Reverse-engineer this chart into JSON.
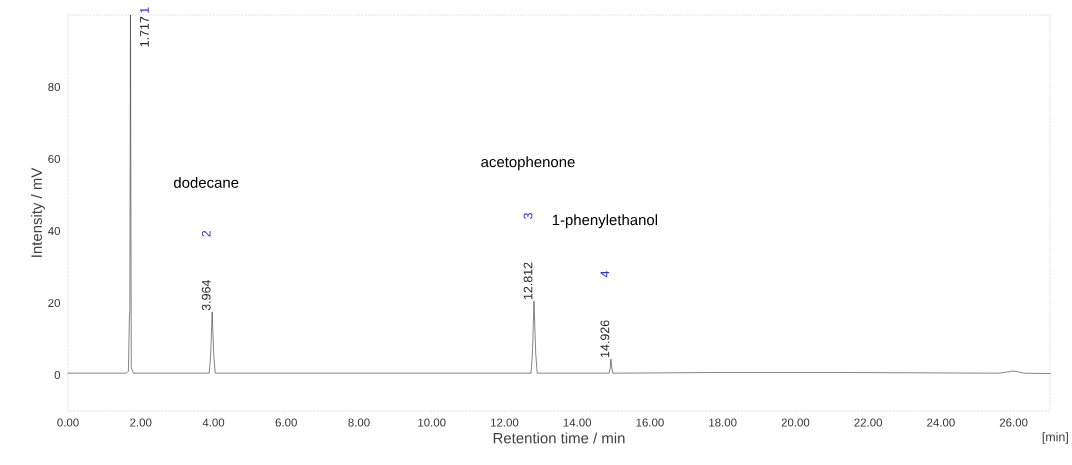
{
  "chart_data": {
    "type": "line",
    "xlabel": "Retention time / min",
    "ylabel": "Intensity / mV",
    "xlim": [
      0,
      27
    ],
    "ylim": [
      -10,
      100
    ],
    "xticks": [
      {
        "value": 0,
        "label": "0.00"
      },
      {
        "value": 2,
        "label": "2.00"
      },
      {
        "value": 4,
        "label": "4.00"
      },
      {
        "value": 6,
        "label": "6.00"
      },
      {
        "value": 8,
        "label": "8.00"
      },
      {
        "value": 10,
        "label": "10.00"
      },
      {
        "value": 12,
        "label": "12.00"
      },
      {
        "value": 14,
        "label": "14.00"
      },
      {
        "value": 16,
        "label": "16.00"
      },
      {
        "value": 18,
        "label": "18.00"
      },
      {
        "value": 20,
        "label": "20.00"
      },
      {
        "value": 22,
        "label": "22.00"
      },
      {
        "value": 24,
        "label": "24.00"
      },
      {
        "value": 26,
        "label": "26.00"
      }
    ],
    "yticks": [
      0,
      20,
      40,
      60,
      80
    ],
    "marker": "none",
    "line_style": "solid",
    "series": [
      {
        "color": "#333333",
        "x": [
          0,
          1.6,
          1.66,
          1.69,
          1.7,
          1.717,
          1.74,
          1.8,
          3.88,
          3.92,
          3.964,
          4.01,
          4.05,
          12.73,
          12.77,
          12.812,
          12.86,
          12.9,
          14.88,
          14.91,
          14.926,
          14.95,
          14.98,
          18,
          21,
          25.6,
          26,
          26.3,
          27
        ],
        "values": [
          0.5,
          0.5,
          1,
          17,
          17,
          100,
          2,
          0.5,
          0.5,
          5,
          17.5,
          5,
          0.5,
          0.5,
          6,
          20.5,
          6,
          0.5,
          0.5,
          2,
          4.4,
          2,
          0.5,
          0.7,
          0.7,
          0.5,
          1.1,
          0.5,
          0.4
        ]
      }
    ],
    "annotations": [
      {
        "text": "1.717",
        "x": 1.717,
        "y": 100
      },
      {
        "text": "3.964",
        "x": 3.964,
        "y": 17.5
      },
      {
        "text": "12.812",
        "x": 12.812,
        "y": 20.5
      },
      {
        "text": "14.926",
        "x": 14.926,
        "y": 4.4
      },
      "1",
      "2",
      "3",
      "4",
      "dodecane",
      "acetophenone",
      "1-phenylethanol",
      "[min]"
    ]
  }
}
